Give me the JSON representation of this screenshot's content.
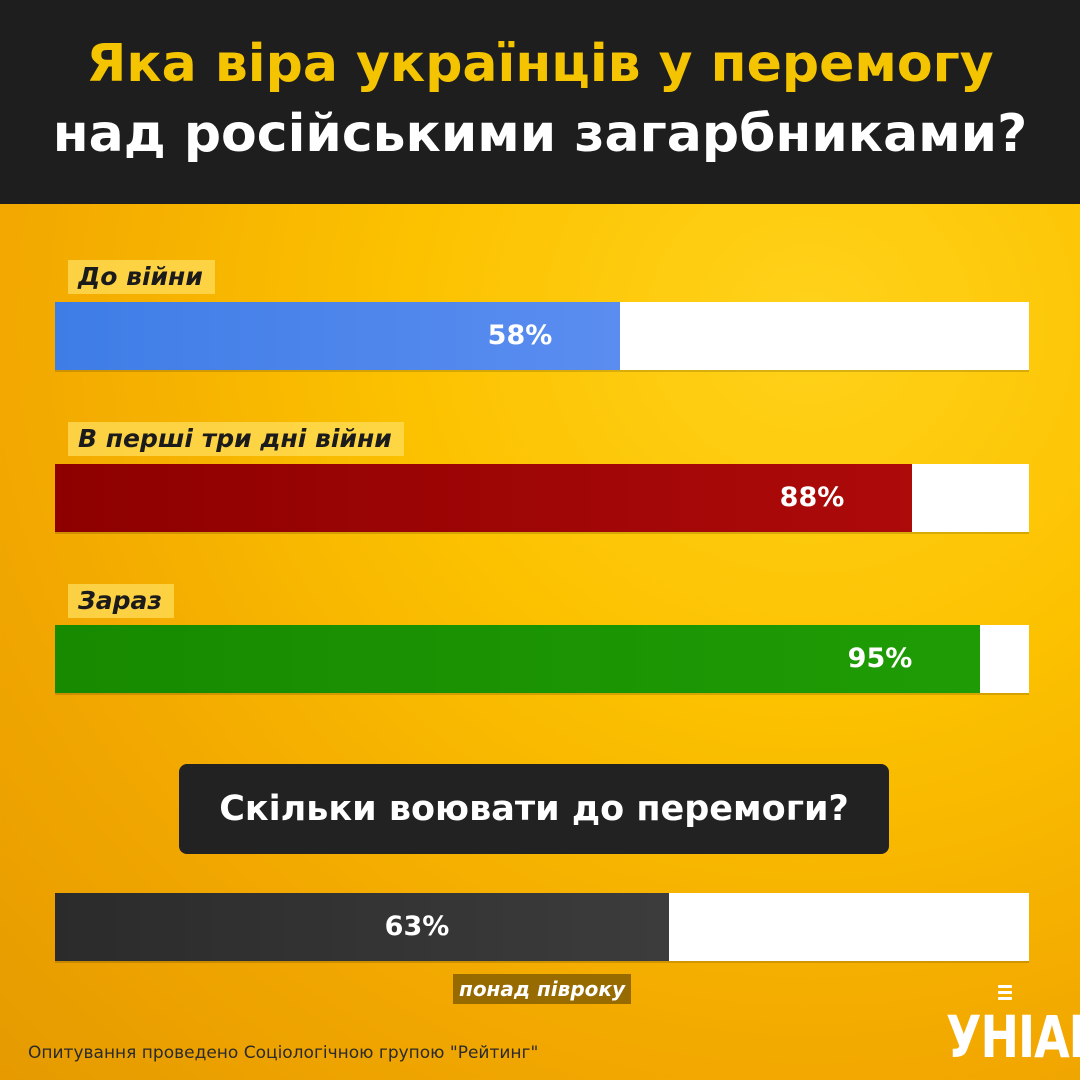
{
  "header": {
    "title_line1": "Яка віра українців у перемогу",
    "title_line2": "над російськими загарбниками?"
  },
  "chart_data": {
    "type": "bar",
    "orientation": "horizontal",
    "xlim": [
      0,
      100
    ],
    "categories": [
      "До війни",
      "В перші три дні війни",
      "Зараз"
    ],
    "values": [
      58,
      88,
      95
    ],
    "value_labels": [
      "58%",
      "88%",
      "95%"
    ],
    "colors": [
      "#4a85ec",
      "#a00404",
      "#1a9203"
    ]
  },
  "question": {
    "text": "Скільки воювати до перемоги?",
    "value": 63,
    "value_label": "63%",
    "color": "#333333",
    "note": "понад півроку"
  },
  "footer": {
    "source": "Опитування проведено Соціологічною групою \"Рейтинг\"",
    "logo_text": "УНІАН",
    "logo_icon": "microphone-icon"
  }
}
